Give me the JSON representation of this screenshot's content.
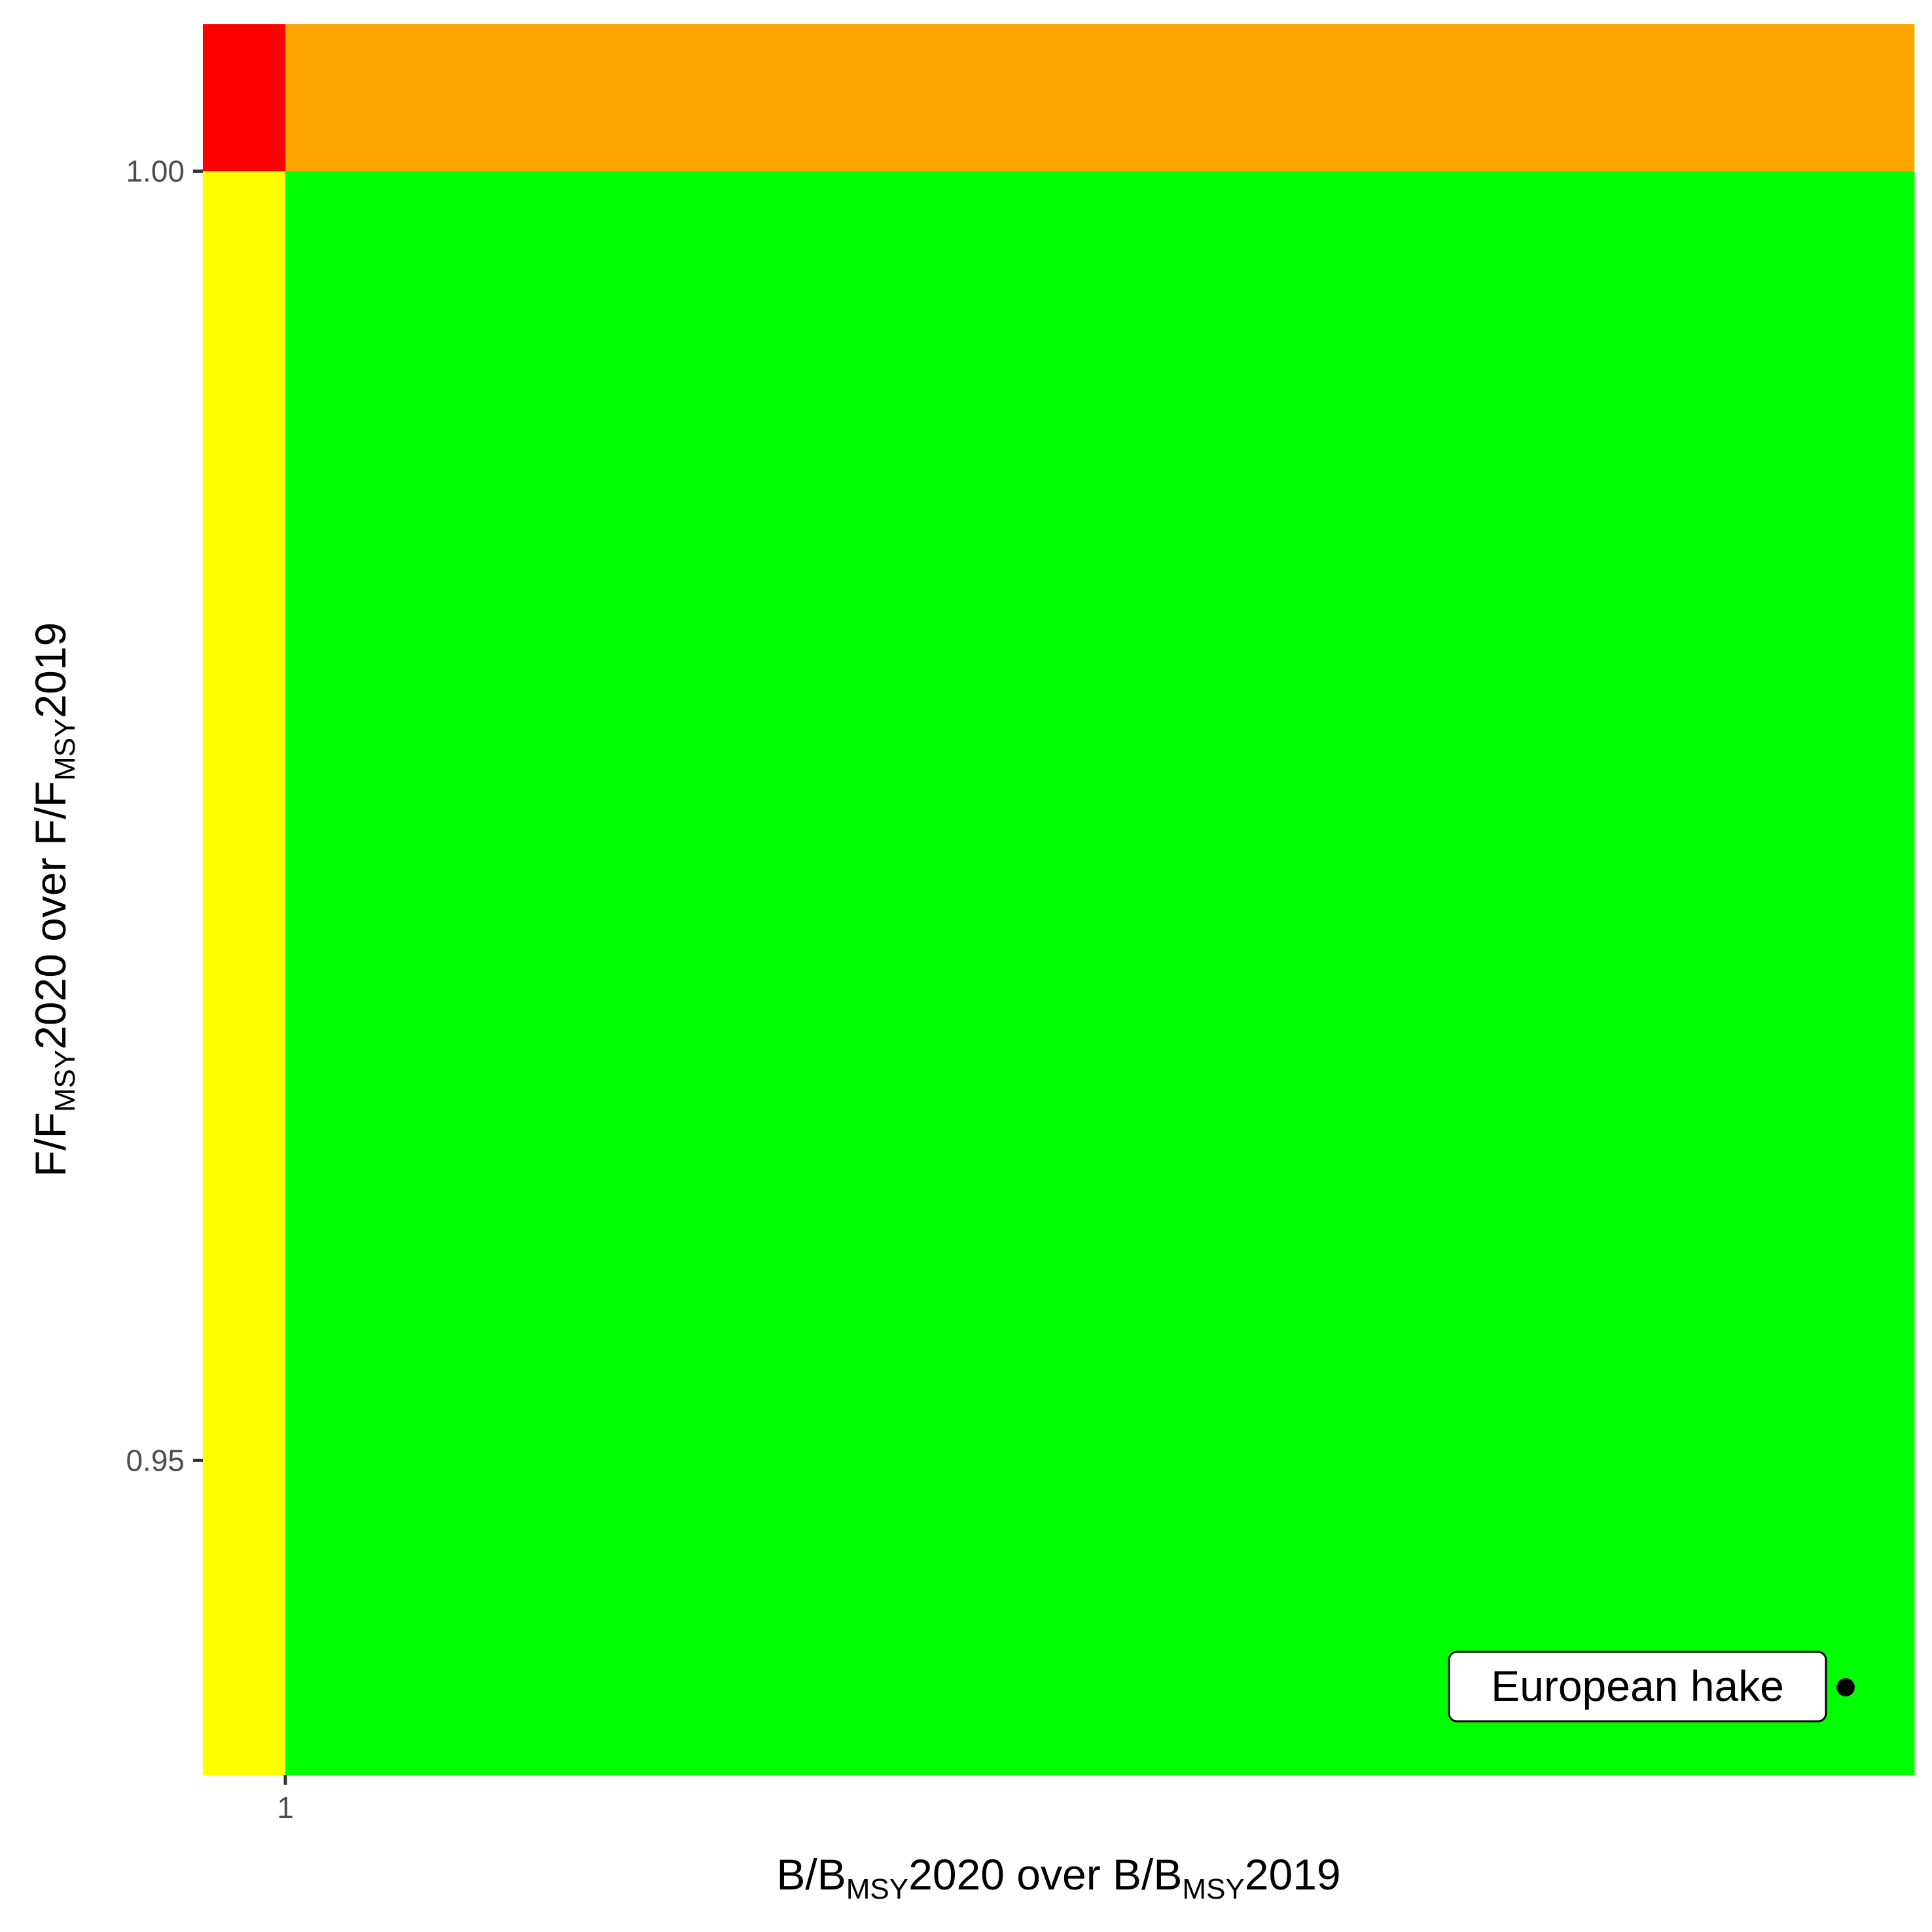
{
  "chart_data": {
    "type": "scatter",
    "title": "",
    "xlabel": {
      "parts": [
        {
          "text": "B/B",
          "sub": false
        },
        {
          "text": "MSY",
          "sub": true
        },
        {
          "text": "2020 over B/B",
          "sub": false
        },
        {
          "text": "MSY",
          "sub": true
        },
        {
          "text": "2019",
          "sub": false
        }
      ]
    },
    "ylabel": {
      "parts": [
        {
          "text": "F/F",
          "sub": false
        },
        {
          "text": "MSY",
          "sub": true
        },
        {
          "text": "2020 over F/F",
          "sub": false
        },
        {
          "text": "MSY",
          "sub": true
        },
        {
          "text": "2019",
          "sub": false
        }
      ]
    },
    "xlim": [
      0.9976,
      1.0474
    ],
    "ylim": [
      0.9378,
      1.0057
    ],
    "xticks": [
      {
        "value": 1,
        "label": "1"
      }
    ],
    "yticks": [
      {
        "value": 1.0,
        "label": "1.00"
      },
      {
        "value": 0.95,
        "label": "0.95"
      }
    ],
    "grid": false,
    "regions": [
      {
        "name": "red",
        "color": "#FF0000",
        "x": [
          null,
          1
        ],
        "y": [
          1,
          null
        ]
      },
      {
        "name": "orange",
        "color": "#FFA500",
        "x": [
          1,
          null
        ],
        "y": [
          1,
          null
        ]
      },
      {
        "name": "yellow",
        "color": "#FFFF00",
        "x": [
          null,
          1
        ],
        "y": [
          null,
          1
        ]
      },
      {
        "name": "green",
        "color": "#00FF00",
        "x": [
          1,
          null
        ],
        "y": [
          null,
          1
        ]
      }
    ],
    "points": [
      {
        "label": "European hake",
        "x": 1.0454,
        "y": 0.9412
      }
    ]
  }
}
